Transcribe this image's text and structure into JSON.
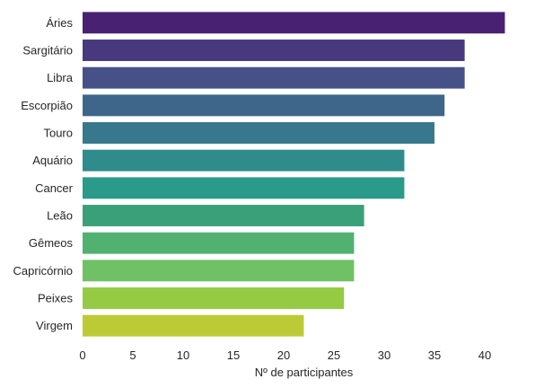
{
  "chart_data": {
    "type": "bar",
    "orientation": "horizontal",
    "title": "",
    "xlabel": "Nº de participantes",
    "ylabel": "",
    "xlim": [
      0,
      43.3
    ],
    "xticks": [
      0,
      5,
      10,
      15,
      20,
      25,
      30,
      35,
      40
    ],
    "grid": false,
    "legend": "none",
    "colormap": "viridis",
    "categories": [
      "Áries",
      "Sargitário",
      "Libra",
      "Escorpião",
      "Touro",
      "Aquário",
      "Cancer",
      "Leão",
      "Gêmeos",
      "Capricórnio",
      "Peixes",
      "Virgem"
    ],
    "values": [
      42,
      38,
      38,
      36,
      35,
      32,
      32,
      28,
      27,
      27,
      26,
      22
    ],
    "colors": [
      "#482173",
      "#48397e",
      "#455187",
      "#3e668b",
      "#38788d",
      "#2f8b8c",
      "#2a9a89",
      "#3aa07a",
      "#51b170",
      "#70c066",
      "#95cb43",
      "#bccb35"
    ]
  }
}
